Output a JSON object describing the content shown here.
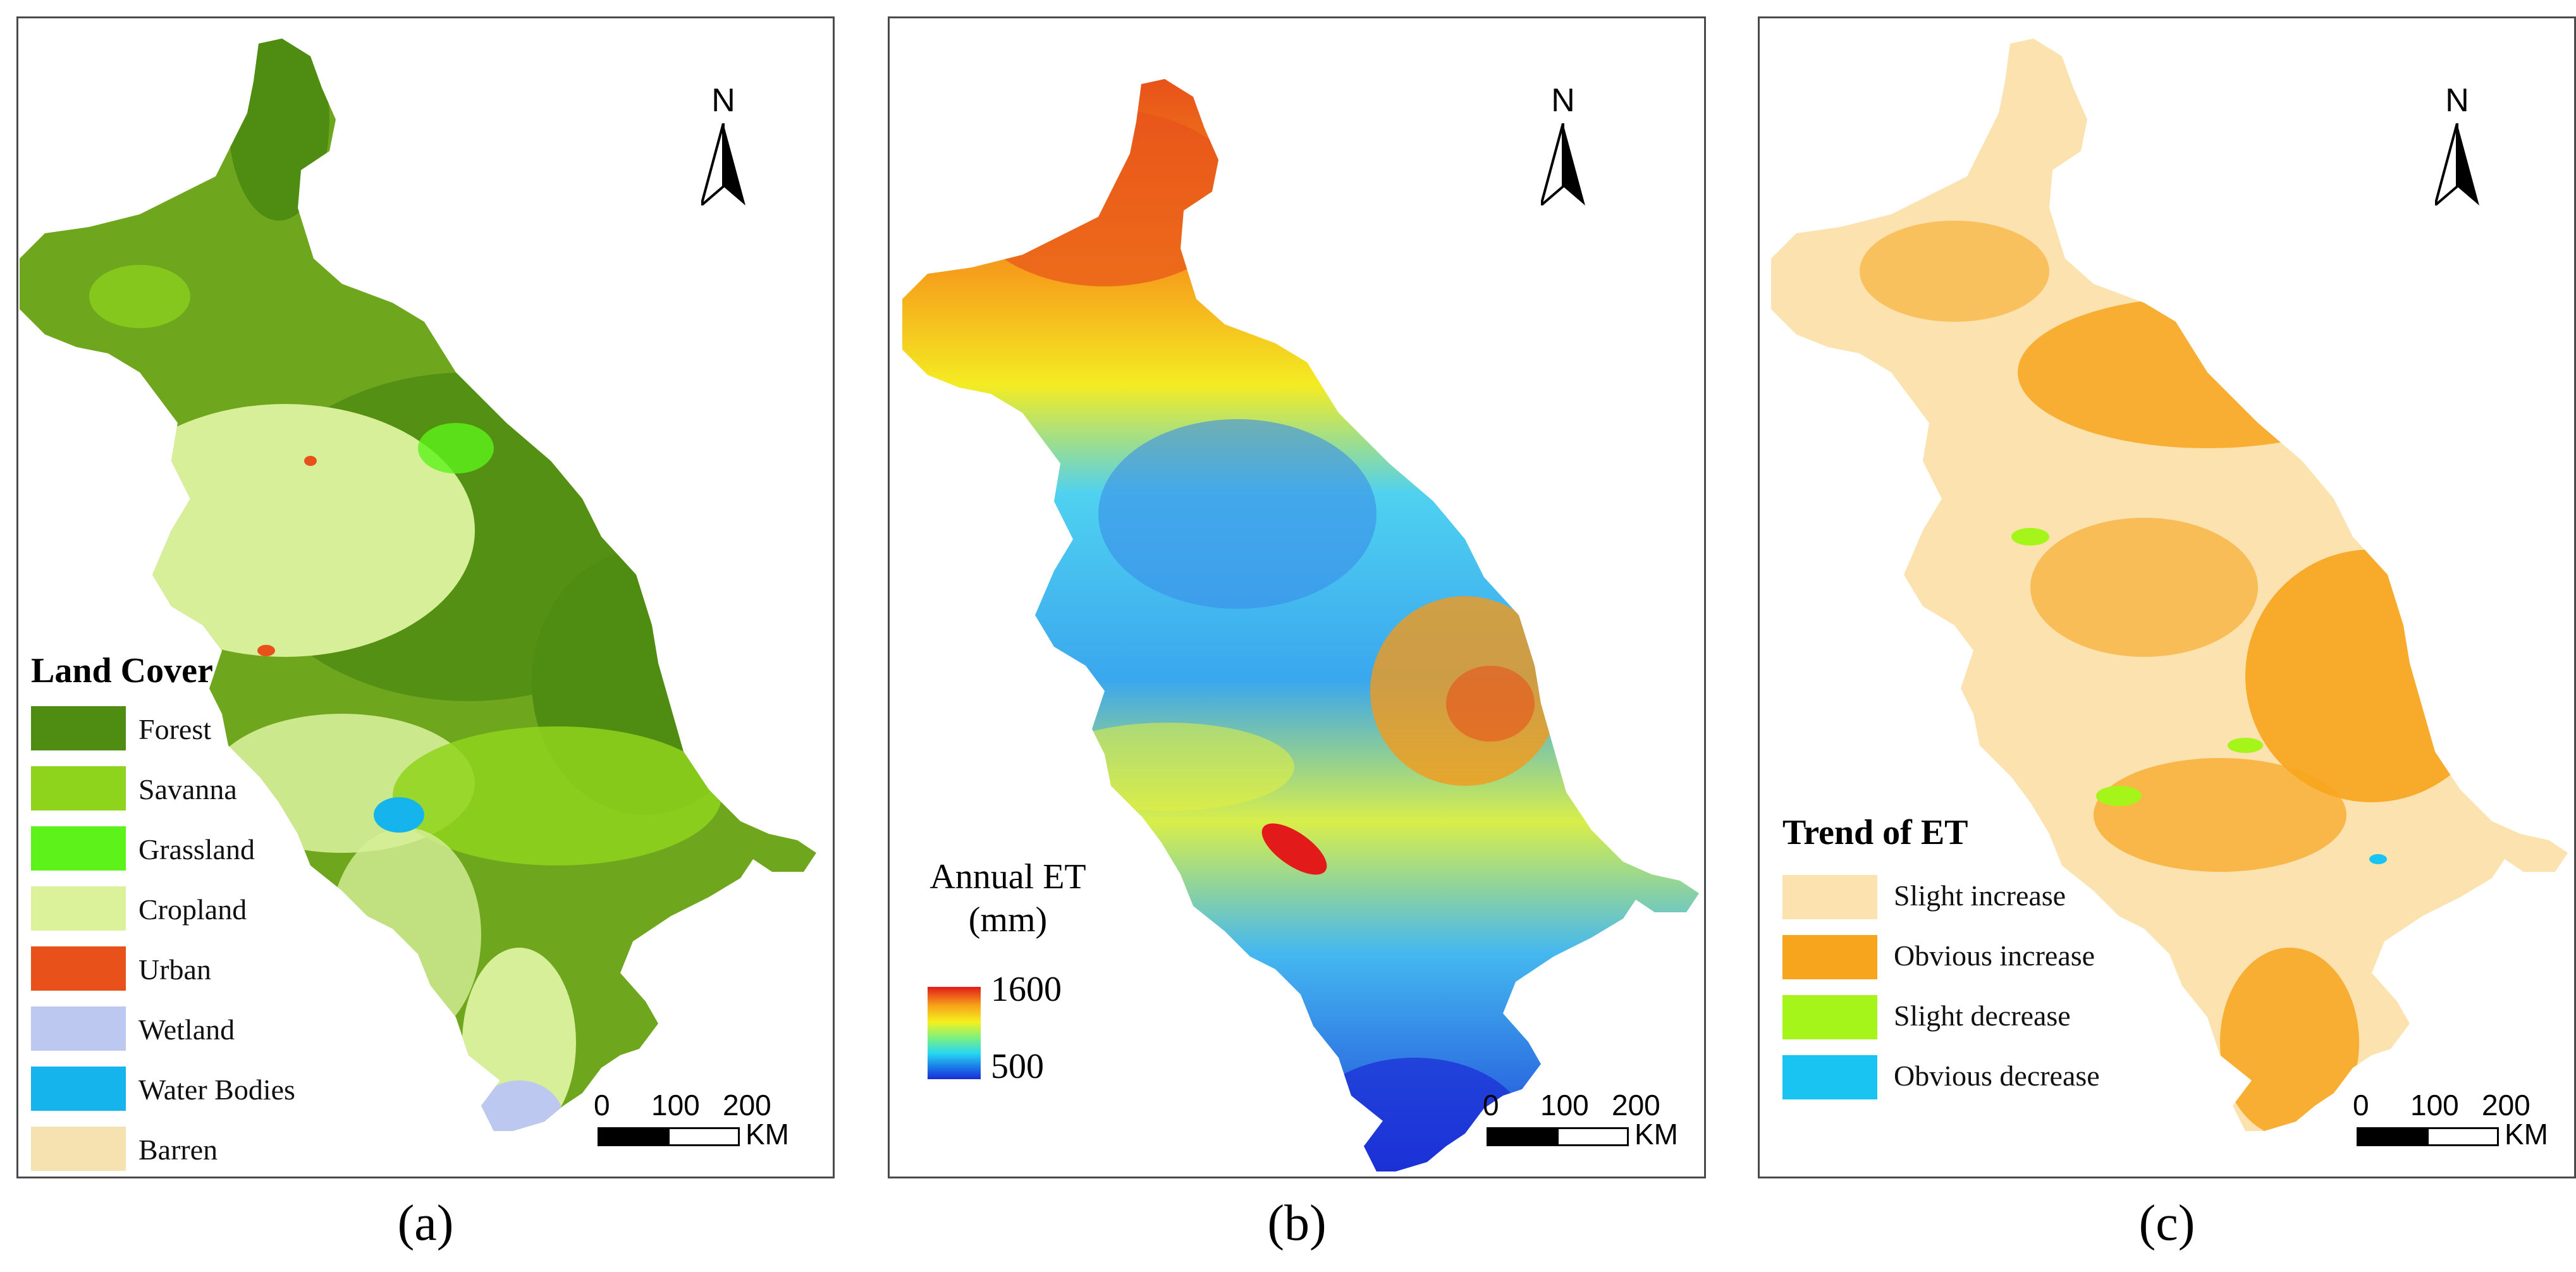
{
  "panels": {
    "a": {
      "caption": "(a)",
      "north": "N",
      "legend": {
        "title": "Land Cover",
        "items": [
          {
            "label": "Forest",
            "color": "#4f8c12"
          },
          {
            "label": "Savanna",
            "color": "#8fd41c"
          },
          {
            "label": "Grassland",
            "color": "#5df21a"
          },
          {
            "label": "Cropland",
            "color": "#dcf29a"
          },
          {
            "label": "Urban",
            "color": "#e8521a"
          },
          {
            "label": "Wetland",
            "color": "#bcc8f0"
          },
          {
            "label": "Water Bodies",
            "color": "#16b4ec"
          },
          {
            "label": "Barren",
            "color": "#f6e2b0"
          }
        ]
      },
      "scale": {
        "ticks": [
          "0",
          "100",
          "200"
        ],
        "unit": "KM"
      }
    },
    "b": {
      "caption": "(b)",
      "north": "N",
      "legend": {
        "title_line1": "Annual ET",
        "title_line2": "(mm)",
        "max": "1600",
        "min": "500"
      },
      "scale": {
        "ticks": [
          "0",
          "100",
          "200"
        ],
        "unit": "KM"
      }
    },
    "c": {
      "caption": "(c)",
      "north": "N",
      "legend": {
        "title": "Trend of ET",
        "items": [
          {
            "label": "Slight increase",
            "color": "#fbe2ae"
          },
          {
            "label": "Obvious increase",
            "color": "#f7a51c"
          },
          {
            "label": "Slight decrease",
            "color": "#a6f51a"
          },
          {
            "label": "Obvious decrease",
            "color": "#1ac4f2"
          }
        ]
      },
      "scale": {
        "ticks": [
          "0",
          "100",
          "200"
        ],
        "unit": "KM"
      }
    }
  }
}
